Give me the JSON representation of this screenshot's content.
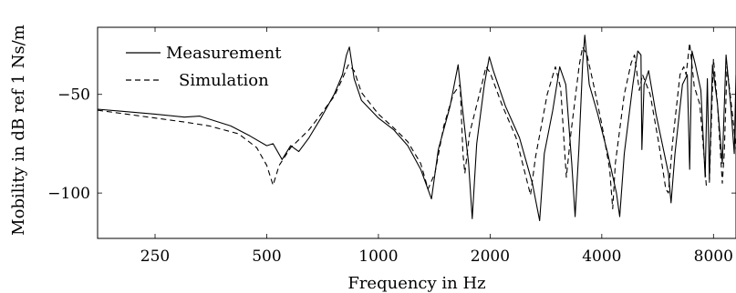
{
  "chart_data": {
    "type": "line",
    "xlabel": "Frequency in Hz",
    "ylabel": "Mobility in dB ref 1 Ns/m",
    "xscale": "log",
    "xlim": [
      175,
      9200
    ],
    "ylim": [
      -123,
      -16
    ],
    "x_ticks": [
      250,
      500,
      1000,
      2000,
      4000,
      8000
    ],
    "x_tick_labels": [
      "250",
      "500",
      "1000",
      "2000",
      "4000",
      "8000"
    ],
    "y_ticks": [
      -50,
      -100
    ],
    "y_tick_labels": [
      "−50",
      "−100"
    ],
    "grid": false,
    "legend": {
      "position": "top-left"
    },
    "series": [
      {
        "name": "Measurement",
        "style": "solid",
        "color": "#000000",
        "points": [
          [
            175,
            -57.5
          ],
          [
            250,
            -60
          ],
          [
            300,
            -61.5
          ],
          [
            330,
            -61
          ],
          [
            400,
            -66
          ],
          [
            450,
            -71
          ],
          [
            500,
            -76
          ],
          [
            520,
            -75
          ],
          [
            550,
            -83
          ],
          [
            580,
            -76
          ],
          [
            610,
            -79
          ],
          [
            650,
            -72
          ],
          [
            700,
            -62
          ],
          [
            760,
            -50
          ],
          [
            800,
            -40
          ],
          [
            820,
            -30
          ],
          [
            835,
            -26
          ],
          [
            860,
            -42
          ],
          [
            900,
            -53
          ],
          [
            1000,
            -62
          ],
          [
            1100,
            -68
          ],
          [
            1200,
            -76
          ],
          [
            1300,
            -88
          ],
          [
            1390,
            -103
          ],
          [
            1450,
            -78
          ],
          [
            1560,
            -56
          ],
          [
            1620,
            -40
          ],
          [
            1640,
            -35
          ],
          [
            1680,
            -55
          ],
          [
            1750,
            -85
          ],
          [
            1790,
            -113
          ],
          [
            1840,
            -75
          ],
          [
            1930,
            -45
          ],
          [
            1990,
            -31
          ],
          [
            2040,
            -38
          ],
          [
            2200,
            -56
          ],
          [
            2400,
            -72
          ],
          [
            2600,
            -95
          ],
          [
            2720,
            -114
          ],
          [
            2800,
            -80
          ],
          [
            2950,
            -58
          ],
          [
            3080,
            -36
          ],
          [
            3200,
            -45
          ],
          [
            3320,
            -85
          ],
          [
            3390,
            -112
          ],
          [
            3470,
            -78
          ],
          [
            3550,
            -35
          ],
          [
            3600,
            -20
          ],
          [
            3700,
            -45
          ],
          [
            3900,
            -60
          ],
          [
            4150,
            -80
          ],
          [
            4380,
            -100
          ],
          [
            4470,
            -112
          ],
          [
            4600,
            -80
          ],
          [
            4850,
            -45
          ],
          [
            5000,
            -28
          ],
          [
            5100,
            -30
          ],
          [
            5130,
            -78
          ],
          [
            5200,
            -45
          ],
          [
            5350,
            -38
          ],
          [
            5600,
            -60
          ],
          [
            6050,
            -90
          ],
          [
            6150,
            -105
          ],
          [
            6300,
            -80
          ],
          [
            6600,
            -45
          ],
          [
            6800,
            -40
          ],
          [
            6900,
            -88
          ],
          [
            7000,
            -28
          ],
          [
            7150,
            -35
          ],
          [
            7400,
            -48
          ],
          [
            7600,
            -92
          ],
          [
            7700,
            -42
          ],
          [
            7800,
            -93
          ],
          [
            7950,
            -35
          ],
          [
            8200,
            -55
          ],
          [
            8450,
            -85
          ],
          [
            8650,
            -30
          ],
          [
            8900,
            -55
          ],
          [
            9100,
            -80
          ],
          [
            9200,
            -40
          ]
        ]
      },
      {
        "name": "Simulation",
        "style": "dashed",
        "color": "#000000",
        "points": [
          [
            175,
            -58
          ],
          [
            250,
            -62
          ],
          [
            300,
            -64
          ],
          [
            350,
            -66
          ],
          [
            420,
            -70
          ],
          [
            470,
            -77
          ],
          [
            500,
            -86
          ],
          [
            520,
            -96
          ],
          [
            540,
            -86
          ],
          [
            580,
            -77
          ],
          [
            650,
            -68
          ],
          [
            700,
            -60
          ],
          [
            760,
            -51
          ],
          [
            800,
            -42
          ],
          [
            830,
            -35
          ],
          [
            860,
            -38
          ],
          [
            900,
            -49
          ],
          [
            1000,
            -60
          ],
          [
            1100,
            -67
          ],
          [
            1200,
            -74
          ],
          [
            1300,
            -85
          ],
          [
            1360,
            -98
          ],
          [
            1420,
            -90
          ],
          [
            1500,
            -66
          ],
          [
            1590,
            -50
          ],
          [
            1660,
            -45
          ],
          [
            1690,
            -80
          ],
          [
            1710,
            -90
          ],
          [
            1760,
            -70
          ],
          [
            1900,
            -45
          ],
          [
            1950,
            -36
          ],
          [
            2000,
            -39
          ],
          [
            2150,
            -55
          ],
          [
            2350,
            -72
          ],
          [
            2500,
            -92
          ],
          [
            2570,
            -101
          ],
          [
            2650,
            -82
          ],
          [
            2850,
            -50
          ],
          [
            3000,
            -36
          ],
          [
            3100,
            -47
          ],
          [
            3180,
            -80
          ],
          [
            3210,
            -92
          ],
          [
            3300,
            -70
          ],
          [
            3480,
            -35
          ],
          [
            3550,
            -26
          ],
          [
            3650,
            -30
          ],
          [
            3800,
            -45
          ],
          [
            4000,
            -65
          ],
          [
            4200,
            -88
          ],
          [
            4280,
            -108
          ],
          [
            4350,
            -85
          ],
          [
            4600,
            -50
          ],
          [
            4800,
            -34
          ],
          [
            4900,
            -30
          ],
          [
            5050,
            -48
          ],
          [
            5150,
            -40
          ],
          [
            5400,
            -50
          ],
          [
            5700,
            -75
          ],
          [
            5950,
            -98
          ],
          [
            6050,
            -100
          ],
          [
            6200,
            -75
          ],
          [
            6500,
            -40
          ],
          [
            6650,
            -36
          ],
          [
            6750,
            -40
          ],
          [
            6900,
            -24
          ],
          [
            7100,
            -46
          ],
          [
            7350,
            -55
          ],
          [
            7500,
            -75
          ],
          [
            7650,
            -96
          ],
          [
            7800,
            -95
          ],
          [
            8000,
            -32
          ],
          [
            8200,
            -55
          ],
          [
            8450,
            -95
          ],
          [
            8550,
            -80
          ],
          [
            8700,
            -36
          ],
          [
            9000,
            -60
          ],
          [
            9200,
            -78
          ]
        ]
      }
    ]
  }
}
